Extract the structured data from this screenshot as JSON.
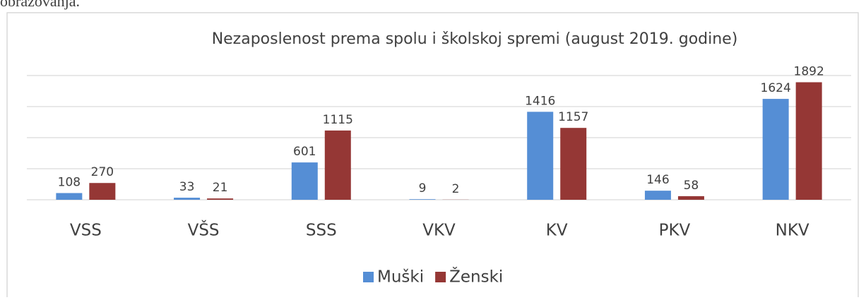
{
  "caption": "obrazovanja.",
  "chart_data": {
    "type": "bar",
    "title": "Nezaposlenost prema spolu i školskoj spremi (august 2019. godine)",
    "categories": [
      "VSS",
      "VŠS",
      "SSS",
      "VKV",
      "KV",
      "PKV",
      "NKV"
    ],
    "series": [
      {
        "name": "Muški",
        "color": "#558ed5",
        "values": [
          108,
          33,
          601,
          9,
          1416,
          146,
          1624
        ]
      },
      {
        "name": "Ženski",
        "color": "#953735",
        "values": [
          270,
          21,
          1115,
          2,
          1157,
          58,
          1892
        ]
      }
    ],
    "ylim": [
      0,
      2000
    ],
    "yticks": [
      0,
      500,
      1000,
      1500,
      2000
    ],
    "grid": true,
    "legend": "bottom"
  }
}
